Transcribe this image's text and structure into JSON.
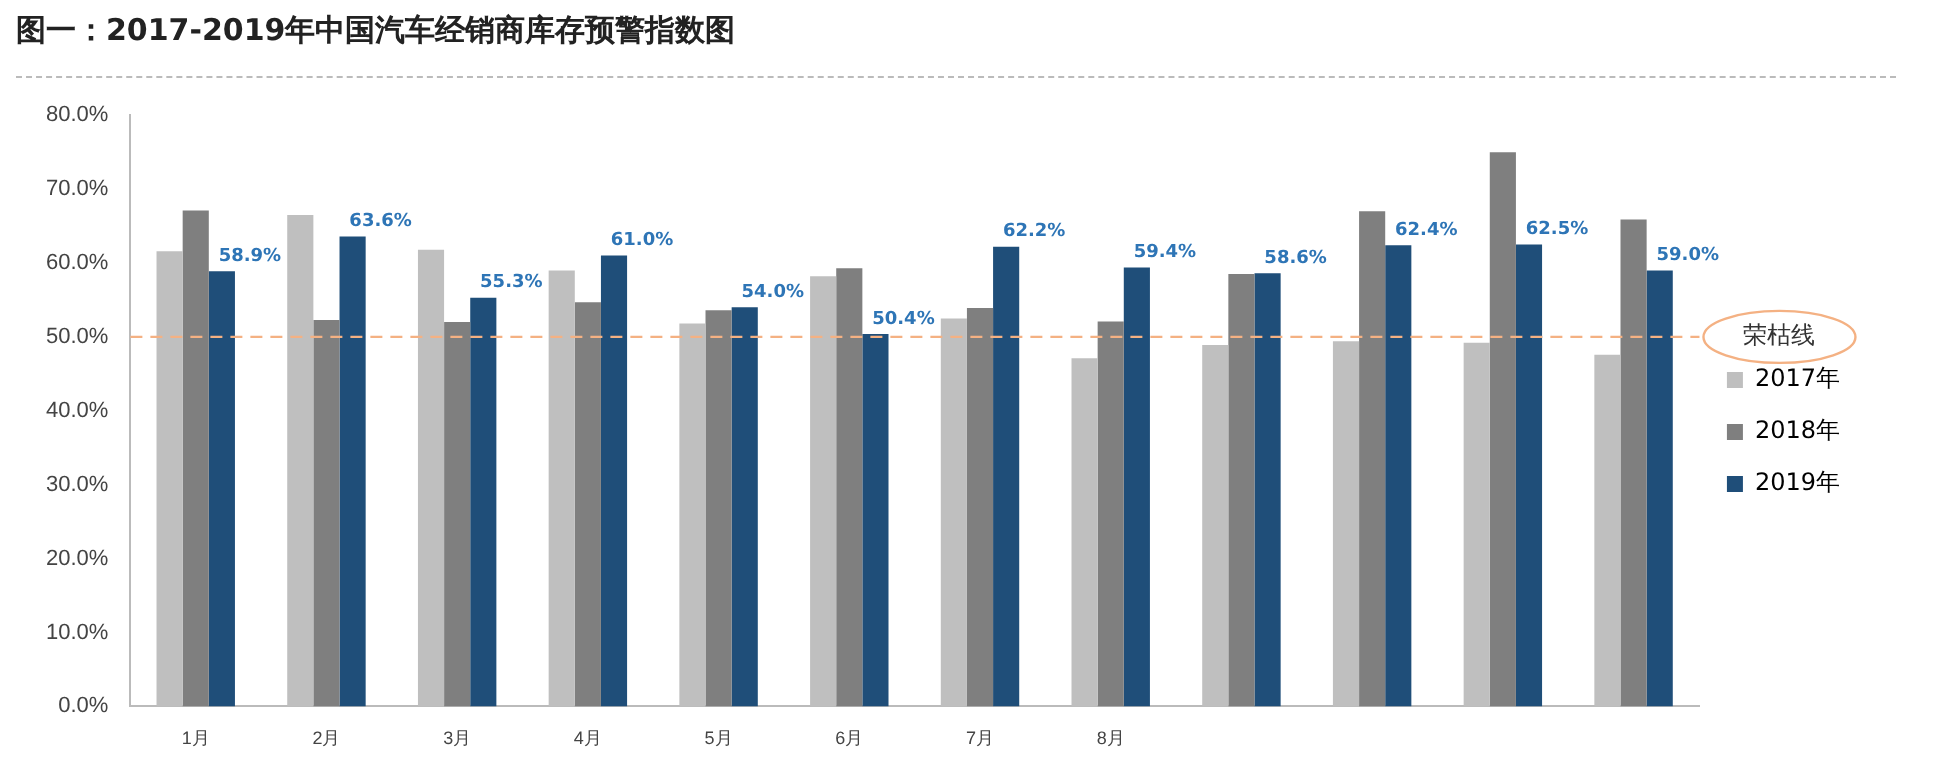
{
  "chart_data": {
    "type": "bar",
    "title": "图一：2017-2019年中国汽车经销商库存预警指数图",
    "categories": [
      "1月",
      "2月",
      "3月",
      "4月",
      "5月",
      "6月",
      "7月",
      "8月",
      null,
      null,
      null,
      null
    ],
    "series": [
      {
        "name": "2017年",
        "color": "#bfbfbf",
        "values": [
          61.6,
          66.5,
          61.8,
          59.0,
          51.8,
          58.2,
          52.5,
          47.1,
          48.9,
          49.4,
          49.2,
          47.6
        ]
      },
      {
        "name": "2018年",
        "color": "#7f7f7f",
        "values": [
          67.1,
          52.3,
          52.0,
          54.7,
          53.6,
          59.3,
          53.9,
          52.1,
          58.5,
          67.0,
          75.0,
          65.9
        ]
      },
      {
        "name": "2019年",
        "color": "#1f4e79",
        "values": [
          58.9,
          63.6,
          55.3,
          61.0,
          54.0,
          50.4,
          62.2,
          59.4,
          58.6,
          62.4,
          62.5,
          59.0
        ],
        "value_labels": [
          "58.9%",
          "63.6%",
          "55.3%",
          "61.0%",
          "54.0%",
          "50.4%",
          "62.2%",
          "59.4%",
          "58.6%",
          "62.4%",
          "62.5%",
          "59.0%"
        ]
      }
    ],
    "ylim": [
      0,
      80
    ],
    "yticks": [
      {
        "value": 0,
        "label": "0.0%"
      },
      {
        "value": 10,
        "label": "10.0%"
      },
      {
        "value": 20,
        "label": "20.0%"
      },
      {
        "value": 30,
        "label": "30.0%"
      },
      {
        "value": 40,
        "label": "40.0%"
      },
      {
        "value": 50,
        "label": "50.0%"
      },
      {
        "value": 60,
        "label": "60.0%"
      },
      {
        "value": 70,
        "label": "70.0%"
      },
      {
        "value": 80,
        "label": "80.0%"
      }
    ],
    "ref_lines": [
      {
        "axis": "y",
        "value": 50,
        "label": "荣枯线",
        "color": "#f4b183",
        "line_style": "dashed"
      }
    ],
    "grid": false,
    "legend": "right"
  }
}
